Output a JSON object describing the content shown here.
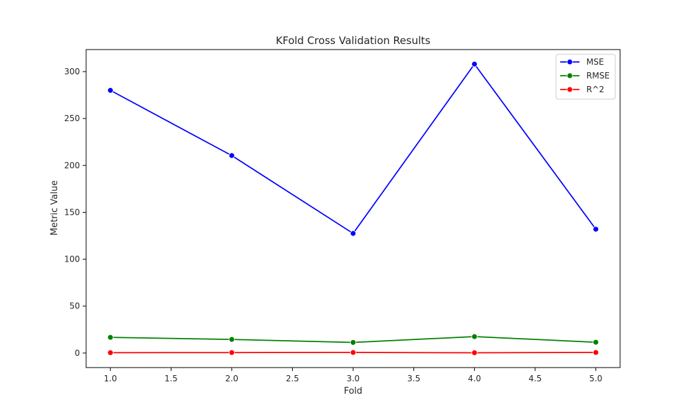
{
  "chart_data": {
    "type": "line",
    "title": "KFold Cross Validation Results",
    "xlabel": "Fold",
    "ylabel": "Metric Value",
    "x": [
      1,
      2,
      3,
      4,
      5
    ],
    "series": [
      {
        "name": "MSE",
        "color": "#0000ff",
        "values": [
          280.0,
          210.5,
          127.5,
          308.0,
          132.0
        ]
      },
      {
        "name": "RMSE",
        "color": "#008000",
        "values": [
          16.7,
          14.5,
          11.3,
          17.5,
          11.5
        ]
      },
      {
        "name": "R^2",
        "color": "#ff0000",
        "values": [
          0.4,
          0.5,
          0.6,
          0.3,
          0.6
        ]
      }
    ],
    "xlim": [
      0.8,
      5.2
    ],
    "ylim": [
      -15.5,
      323.5
    ],
    "xticks": [
      1.0,
      1.5,
      2.0,
      2.5,
      3.0,
      3.5,
      4.0,
      4.5,
      5.0
    ],
    "xtick_labels": [
      "1.0",
      "1.5",
      "2.0",
      "2.5",
      "3.0",
      "3.5",
      "4.0",
      "4.5",
      "5.0"
    ],
    "yticks": [
      0,
      50,
      100,
      150,
      200,
      250,
      300
    ],
    "ytick_labels": [
      "0",
      "50",
      "100",
      "150",
      "200",
      "250",
      "300"
    ],
    "grid": false,
    "legend_position": "top-right",
    "markers": "circle"
  }
}
